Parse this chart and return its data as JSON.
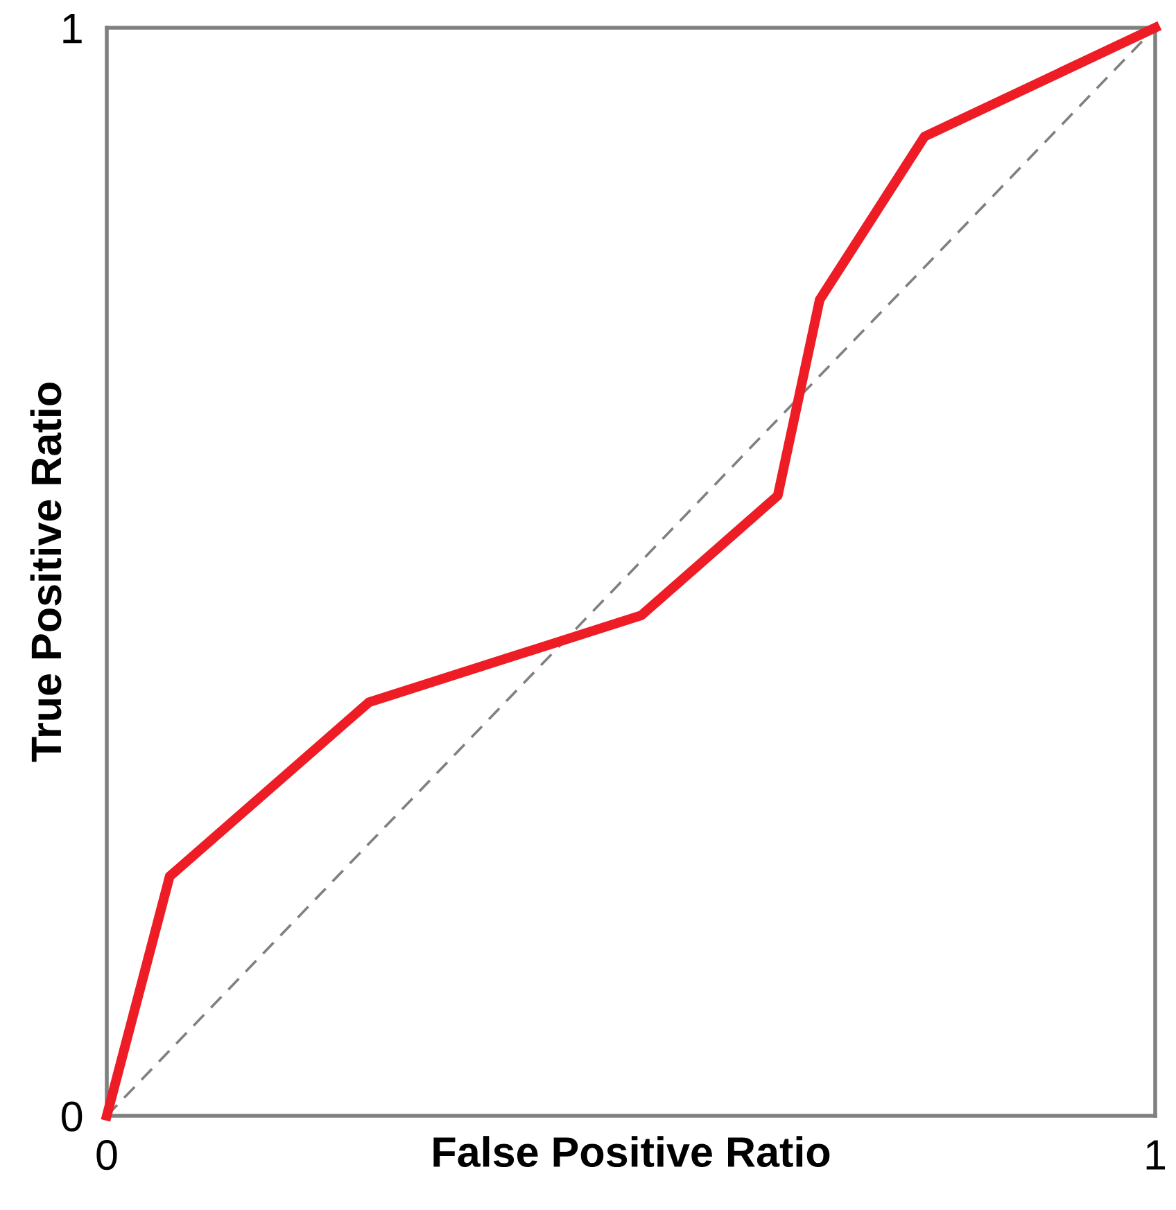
{
  "chart_data": {
    "type": "line",
    "xlabel": "False Positive Ratio",
    "ylabel": "True Positive Ratio",
    "xlim": [
      0,
      1
    ],
    "ylim": [
      0,
      1
    ],
    "xticks": [
      0,
      1
    ],
    "yticks": [
      0,
      1
    ],
    "marker": "none",
    "series": [
      {
        "color": "#808080",
        "line_style": "dashed",
        "x": [
          0,
          1
        ],
        "values": [
          0,
          1
        ]
      },
      {
        "color": "#ee1c25",
        "line_style": "solid",
        "x": [
          0,
          0.06,
          0.25,
          0.51,
          0.64,
          0.68,
          0.78,
          1
        ],
        "values": [
          0,
          0.22,
          0.38,
          0.46,
          0.57,
          0.75,
          0.9,
          1
        ]
      }
    ]
  }
}
